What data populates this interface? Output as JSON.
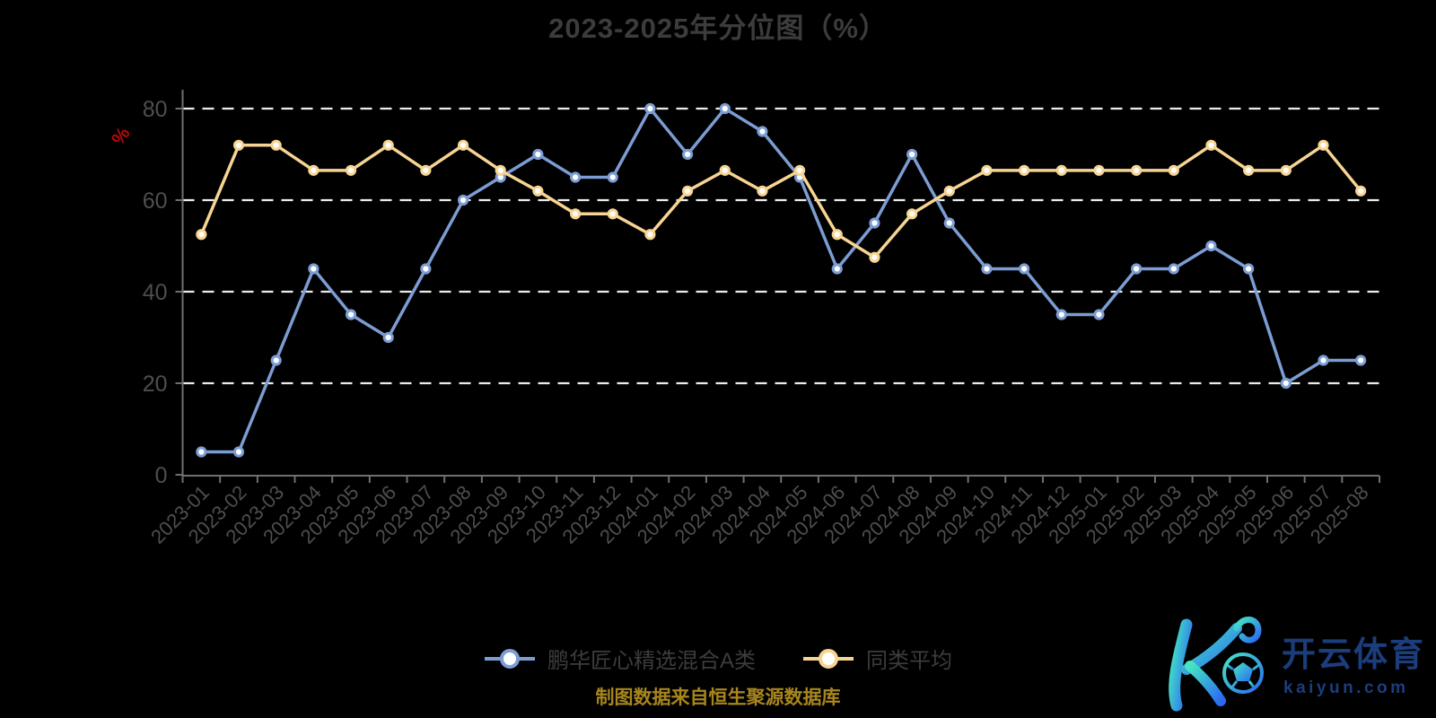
{
  "chart_data": {
    "type": "line",
    "title": "2023-2025年分位图（%）",
    "ylabel": "%",
    "xlabel": "",
    "categories": [
      "2023-01",
      "2023-02",
      "2023-03",
      "2023-04",
      "2023-05",
      "2023-06",
      "2023-07",
      "2023-08",
      "2023-09",
      "2023-10",
      "2023-11",
      "2023-12",
      "2024-01",
      "2024-02",
      "2024-03",
      "2024-04",
      "2024-05",
      "2024-06",
      "2024-07",
      "2024-08",
      "2024-09",
      "2024-10",
      "2024-11",
      "2024-12",
      "2025-01",
      "2025-02",
      "2025-03",
      "2025-04",
      "2025-05",
      "2025-06",
      "2025-07",
      "2025-08"
    ],
    "series": [
      {
        "name": "鹏华匠心精选混合A类",
        "color": "#7b9dd3",
        "values": [
          5,
          5,
          25,
          45,
          35,
          30,
          45,
          60,
          65,
          70,
          65,
          65,
          80,
          70,
          80,
          75,
          65,
          45,
          55,
          70,
          55,
          45,
          45,
          35,
          35,
          45,
          45,
          50,
          45,
          20,
          25,
          25
        ]
      },
      {
        "name": "同类平均",
        "color": "#f7d492",
        "values": [
          52.5,
          72,
          72,
          66.5,
          66.5,
          72,
          66.5,
          72,
          66.5,
          62,
          57,
          57,
          52.5,
          62,
          66.5,
          62,
          66.5,
          52.5,
          47.5,
          57,
          62,
          66.5,
          66.5,
          66.5,
          66.5,
          66.5,
          66.5,
          72,
          66.5,
          66.5,
          72,
          62
        ]
      }
    ],
    "yticks": [
      0,
      20,
      40,
      60,
      80
    ],
    "ylim": [
      0,
      80
    ],
    "grid": "horizontal-dashed",
    "legend_position": "bottom"
  },
  "footer": {
    "source_note": "制图数据来自恒生聚源数据库"
  },
  "logo": {
    "brand": "开云体育",
    "domain": "kaiyun.com"
  },
  "styles": {
    "background": "#000000",
    "title_color": "#3c3c3c",
    "axis_line_color": "#6f6f6f",
    "axis_label_color": "#4e4e4e",
    "grid_color": "#ececec",
    "ylabel_color": "#b40a0a",
    "legend_text_color": "#3c3c3c",
    "footer_color": "#a8861d",
    "marker_fill": "#ffffff",
    "logo_text_color": "#1c3d7c",
    "logo_gradient_start": "#45e6c3",
    "logo_gradient_end": "#2b6bf2"
  }
}
